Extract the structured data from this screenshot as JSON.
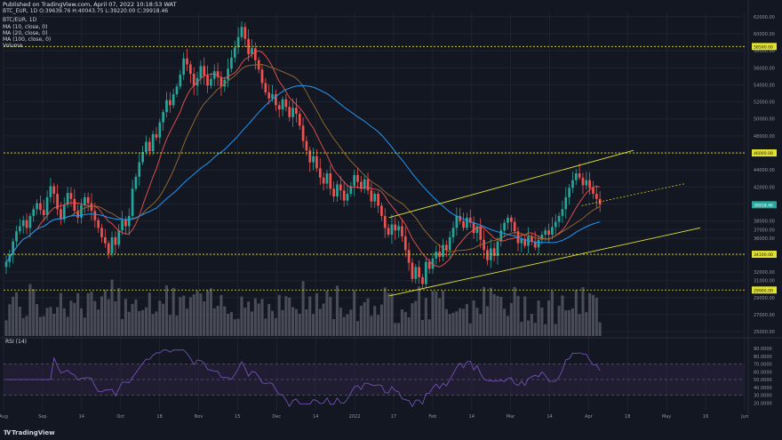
{
  "header": {
    "published": "Published on TradingView.com, April 07, 2022 10:18:53 WAT",
    "ohlc": "BTC_EUR, 1D O:39639.76 H:40043.75 L:39220.00 C:39918.46",
    "legend": [
      "BTC/EUR, 1D",
      "MA (10, close, 0)",
      "MA (20, close, 0)",
      "MA (100, close, 0)",
      "Volume"
    ],
    "rsi_label": "RSI (14)"
  },
  "branding": {
    "logo_text": "TradingView"
  },
  "colors": {
    "background": "#131722",
    "grid": "#1f2330",
    "up": "#26a69a",
    "down": "#ef5350",
    "ma10": "#ef5350",
    "ma20": "#9c6b2f",
    "ma100": "#2196f3",
    "channel": "#e2e233",
    "level": "#e2e233",
    "volume": "#5d606b",
    "rsi": "#7e57c2",
    "rsi_band": "#2a2140",
    "last_price": "#26a69a",
    "axis_text": "#8f94a1"
  },
  "chart_data": {
    "type": "candlestick",
    "title": "BTC/EUR, 1D",
    "price_axis_ticks": [
      25000,
      27000,
      29000,
      31000,
      32000,
      34000,
      36000,
      37000,
      38000,
      40000,
      42000,
      44000,
      46000,
      48000,
      50000,
      52000,
      54000,
      56000,
      58000,
      60000,
      62000
    ],
    "ylim": [
      24500,
      62500
    ],
    "x_axis_labels": [
      "Aug",
      "Sep",
      "14",
      "Oct",
      "18",
      "Nov",
      "15",
      "Dec",
      "14",
      "2022",
      "17",
      "Feb",
      "14",
      "Mar",
      "14",
      "Apr",
      "18",
      "May",
      "16",
      "Jun"
    ],
    "horizontal_levels": [
      58500,
      46000,
      34100,
      29900
    ],
    "level_labels": [
      "58500.00",
      "46000.00",
      "34100.00",
      "29900.00"
    ],
    "last_price": 39918.46,
    "last_price_label": "39918.46",
    "series_close": [
      33200,
      34100,
      35600,
      36800,
      37400,
      38100,
      37200,
      38600,
      39400,
      40100,
      39300,
      38700,
      40800,
      42100,
      41200,
      39400,
      38200,
      39900,
      41300,
      40600,
      39200,
      38400,
      39900,
      40800,
      40100,
      39200,
      38100,
      37200,
      36100,
      35400,
      34200,
      36100,
      35200,
      36900,
      38100,
      37400,
      38600,
      41800,
      43200,
      44900,
      46100,
      47300,
      46200,
      48200,
      47800,
      49600,
      50800,
      52200,
      51600,
      52900,
      53800,
      55200,
      57100,
      56400,
      55300,
      53900,
      54800,
      56200,
      55100,
      53900,
      54700,
      55600,
      54900,
      53800,
      54600,
      55900,
      57200,
      58400,
      59600,
      60800,
      59400,
      57600,
      58300,
      56900,
      55800,
      54200,
      53100,
      52400,
      52900,
      51600,
      51100,
      52300,
      51400,
      50200,
      51300,
      50600,
      49200,
      47400,
      46300,
      44900,
      45600,
      44200,
      43100,
      42400,
      43600,
      41800,
      40900,
      42300,
      41600,
      40400,
      41200,
      42100,
      43400,
      42600,
      41800,
      42900,
      41600,
      40300,
      41200,
      39800,
      38600,
      37200,
      36400,
      37600,
      36900,
      37400,
      36200,
      34600,
      33100,
      31200,
      32600,
      31400,
      30600,
      33200,
      32400,
      33600,
      34400,
      33800,
      35200,
      34600,
      36100,
      37200,
      38600,
      38000,
      37200,
      38400,
      37800,
      36600,
      37400,
      35800,
      34600,
      33400,
      34800,
      33900,
      35600,
      36900,
      37800,
      38400,
      37900,
      36800,
      35400,
      35900,
      35100,
      36200,
      35600,
      34900,
      35800,
      36400,
      36900,
      36400,
      37300,
      37900,
      38600,
      39400,
      40800,
      41900,
      42800,
      43600,
      43100,
      42200,
      42800,
      41900,
      41200,
      40600,
      39918
    ],
    "channel": {
      "upper_start": [
        0.52,
        38400
      ],
      "upper_end": [
        0.85,
        46300
      ],
      "lower_start": [
        0.52,
        29200
      ],
      "lower_end": [
        0.94,
        37200
      ]
    },
    "rsi": {
      "upper": 70,
      "lower": 30,
      "ticks": [
        90,
        80,
        70,
        60,
        50,
        40,
        30,
        20
      ]
    }
  }
}
